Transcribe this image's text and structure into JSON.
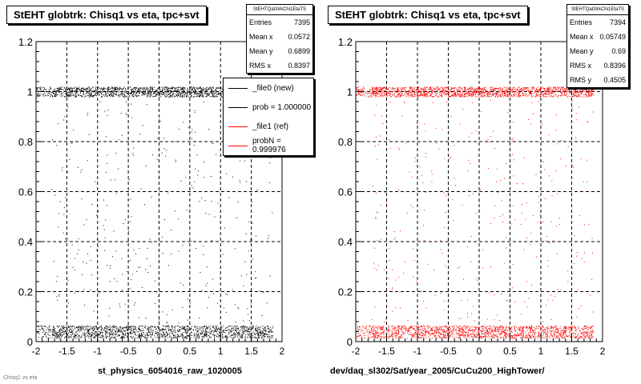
{
  "colors": {
    "new": "#000000",
    "ref": "#ff0000"
  },
  "footer_text": "Chisq1 vs eta",
  "chart_data": [
    {
      "type": "scatter",
      "title": "StEHT globtrk: Chisq1 vs eta, tpc+svt",
      "xlabel": "st_physics_6054016_raw_1020005",
      "ylabel": "",
      "xlim": [
        -2,
        2
      ],
      "ylim": [
        0,
        1.2
      ],
      "xticks": [
        "-2",
        "-1.5",
        "-1",
        "-0.5",
        "0",
        "0.5",
        "1",
        "1.5",
        "2"
      ],
      "yticks": [
        "0",
        "0.2",
        "0.4",
        "0.6",
        "0.8",
        "1",
        "1.2"
      ],
      "grid": true,
      "series_color": "#000000",
      "bands": [
        {
          "y_center": 1.0,
          "y_halfwidth": 0.02,
          "x_range": [
            -1.75,
            1.85
          ]
        },
        {
          "y_center": 0.04,
          "y_halfwidth": 0.025,
          "x_range": [
            -1.75,
            1.85
          ]
        }
      ],
      "stats": {
        "name": "StEHTQaGtrkChi1EtaTS",
        "rows": [
          {
            "label": "Entries",
            "value": "7395"
          },
          {
            "label": "Mean x",
            "value": "0.0572"
          },
          {
            "label": "Mean y",
            "value": "0.6899"
          },
          {
            "label": "RMS x",
            "value": "0.8397"
          }
        ]
      },
      "legend": {
        "placement": "top-right",
        "entries": [
          {
            "label": "_file0 (new)",
            "color": "#000000"
          },
          {
            "label": "prob = 1.000000",
            "color": "#000000"
          },
          {
            "label": "_file1 (ref)",
            "color": "#ff0000"
          },
          {
            "label": "probN = 0.999976",
            "color": "#ff0000"
          }
        ]
      }
    },
    {
      "type": "scatter",
      "title": "StEHT globtrk: Chisq1 vs eta, tpc+svt",
      "xlabel": "dev/daq_sl302/Sat/year_2005/CuCu200_HighTower/",
      "ylabel": "",
      "xlim": [
        -2,
        2
      ],
      "ylim": [
        0,
        1.2
      ],
      "xticks": [
        "-2",
        "-1.5",
        "-1",
        "-0.5",
        "0",
        "0.5",
        "1",
        "1.5",
        "2"
      ],
      "yticks": [
        "0",
        "0.2",
        "0.4",
        "0.6",
        "0.8",
        "1",
        "1.2"
      ],
      "grid": true,
      "series_color": "#ff0000",
      "bands": [
        {
          "y_center": 1.0,
          "y_halfwidth": 0.02,
          "x_range": [
            -1.75,
            1.85
          ]
        },
        {
          "y_center": 0.04,
          "y_halfwidth": 0.025,
          "x_range": [
            -1.75,
            1.85
          ]
        }
      ],
      "stats": {
        "name": "StEHTQaGtrkChi1EtaTS",
        "rows": [
          {
            "label": "Entries",
            "value": "7394"
          },
          {
            "label": "Mean x",
            "value": "0.05749"
          },
          {
            "label": "Mean y",
            "value": "0.69"
          },
          {
            "label": "RMS x",
            "value": "0.8396"
          },
          {
            "label": "RMS y",
            "value": "0.4505"
          }
        ]
      }
    }
  ]
}
